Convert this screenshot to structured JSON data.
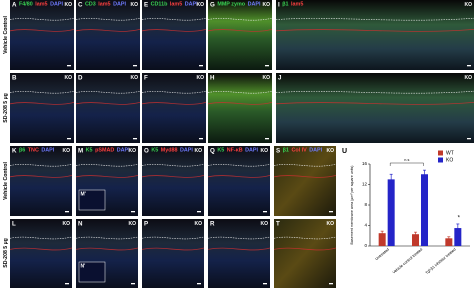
{
  "rows": [
    "Vehicle Control",
    "SD-208 5 µg",
    "Vehicle Control",
    "SD-208 5 µg"
  ],
  "panels": [
    {
      "label": "A",
      "tag": "KO",
      "stains": [
        {
          "text": "F4/80",
          "color": "#39d353"
        },
        {
          "text": "lam5",
          "color": "#ff4040"
        },
        {
          "text": "DAPI",
          "color": "#6f7bff"
        }
      ]
    },
    {
      "label": "C",
      "tag": "KO",
      "stains": [
        {
          "text": "CD3",
          "color": "#39d353"
        },
        {
          "text": "lam5",
          "color": "#ff4040"
        },
        {
          "text": "DAPI",
          "color": "#6f7bff"
        }
      ]
    },
    {
      "label": "E",
      "tag": "KO",
      "stains": [
        {
          "text": "CD11b",
          "color": "#39d353"
        },
        {
          "text": "lam5",
          "color": "#ff4040"
        },
        {
          "text": "DAPI",
          "color": "#6f7bff"
        }
      ]
    },
    {
      "label": "G",
      "tag": "KO",
      "stains": [
        {
          "text": "MMP zymo",
          "color": "#39d353"
        },
        {
          "text": "DAPI",
          "color": "#6f7bff"
        }
      ]
    },
    {
      "label": "I",
      "tag": "KO",
      "stains": [
        {
          "text": "β1",
          "color": "#39d353"
        },
        {
          "text": "lam5",
          "color": "#ff4040"
        }
      ]
    },
    {
      "label": "B",
      "tag": "KO",
      "stains": []
    },
    {
      "label": "D",
      "tag": "KO",
      "stains": []
    },
    {
      "label": "F",
      "tag": "KO",
      "stains": []
    },
    {
      "label": "H",
      "tag": "KO",
      "stains": []
    },
    {
      "label": "J",
      "tag": "KO",
      "stains": []
    },
    {
      "label": "K",
      "tag": "KO",
      "stains": [
        {
          "text": "β6",
          "color": "#39d353"
        },
        {
          "text": "TNC",
          "color": "#ff4040"
        },
        {
          "text": "DAPI",
          "color": "#6f7bff"
        }
      ]
    },
    {
      "label": "M",
      "tag": "KO",
      "inset": "M'",
      "stains": [
        {
          "text": "K5",
          "color": "#39d353"
        },
        {
          "text": "pSMAD",
          "color": "#ff4040"
        },
        {
          "text": "DAPI",
          "color": "#6f7bff"
        }
      ]
    },
    {
      "label": "O",
      "tag": "KO",
      "stains": [
        {
          "text": "K5",
          "color": "#39d353"
        },
        {
          "text": "Myd88",
          "color": "#ff4040"
        },
        {
          "text": "DAPI",
          "color": "#6f7bff"
        }
      ]
    },
    {
      "label": "Q",
      "tag": "KO",
      "stains": [
        {
          "text": "K5",
          "color": "#39d353"
        },
        {
          "text": "NF-κB",
          "color": "#ff4040"
        },
        {
          "text": "DAPI",
          "color": "#6f7bff"
        }
      ]
    },
    {
      "label": "S",
      "tag": "KO",
      "stains": [
        {
          "text": "β1",
          "color": "#39d353"
        },
        {
          "text": "Col IV",
          "color": "#ff4040"
        },
        {
          "text": "DAPI",
          "color": "#6f7bff"
        }
      ]
    },
    {
      "label": "L",
      "tag": "KO",
      "stains": []
    },
    {
      "label": "N",
      "tag": "KO",
      "inset": "N'",
      "stains": []
    },
    {
      "label": "P",
      "tag": "KO",
      "stains": []
    },
    {
      "label": "R",
      "tag": "KO",
      "stains": []
    },
    {
      "label": "T",
      "tag": "KO",
      "stains": []
    }
  ],
  "chart_data": {
    "type": "bar",
    "label": "U",
    "y_label": "Basement membrane area (µm² per square units)",
    "categories": [
      "Untreated",
      "Vehicle control treated",
      "Tgf-β1 inhibitor treated"
    ],
    "series": [
      {
        "name": "WT",
        "color": "#c0392b",
        "values": [
          2.5,
          2.3,
          1.5
        ],
        "errors": [
          0.4,
          0.4,
          0.3
        ]
      },
      {
        "name": "KO",
        "color": "#2424c8",
        "values": [
          13,
          14,
          3.5
        ],
        "errors": [
          1,
          0.8,
          0.8
        ]
      }
    ],
    "ylim": [
      0,
      16
    ],
    "yticks": [
      0,
      4,
      8,
      12,
      16
    ],
    "annotations": [
      "n.s",
      "*"
    ]
  }
}
